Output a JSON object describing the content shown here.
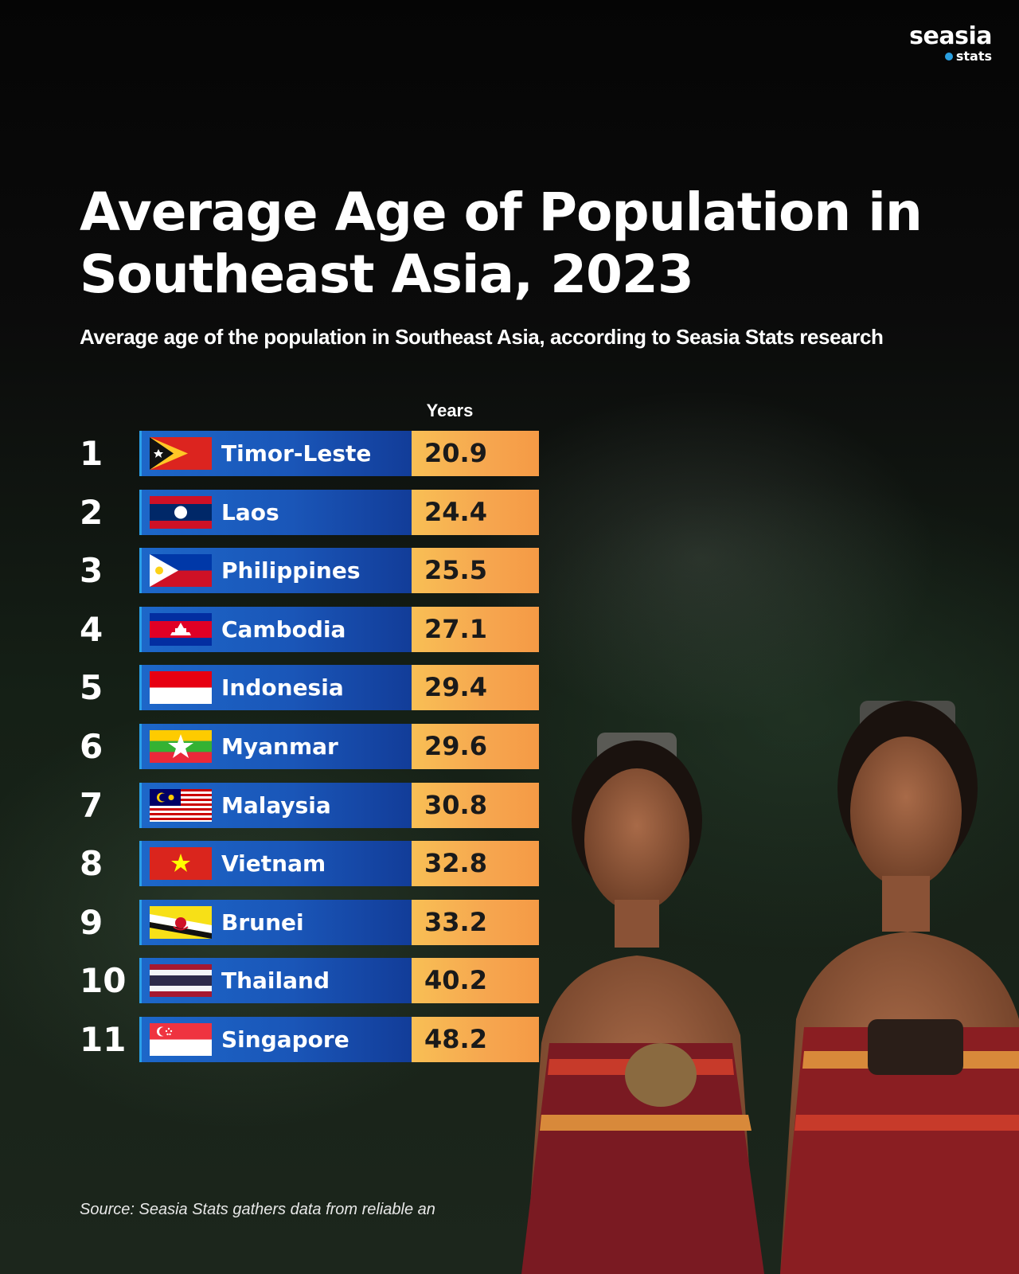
{
  "brand": {
    "name": "seasia",
    "sub": "stats",
    "accent": "#2a9fe0"
  },
  "chart_data": {
    "type": "bar",
    "title": "Average Age of Population in Southeast Asia, 2023",
    "subtitle": "Average age of the population in Southeast Asia, according to Seasia Stats research",
    "value_header": "Years",
    "categories": [
      "Timor-Leste",
      "Laos",
      "Philippines",
      "Cambodia",
      "Indonesia",
      "Myanmar",
      "Malaysia",
      "Vietnam",
      "Brunei",
      "Thailand",
      "Singapore"
    ],
    "ranks": [
      "1",
      "2",
      "3",
      "4",
      "5",
      "6",
      "7",
      "8",
      "9",
      "10",
      "11"
    ],
    "values": [
      20.9,
      24.4,
      25.5,
      27.1,
      29.4,
      29.6,
      30.8,
      32.8,
      33.2,
      40.2,
      48.2
    ],
    "value_labels": [
      "20.9",
      "24.4",
      "25.5",
      "27.1",
      "29.4",
      "29.6",
      "30.8",
      "32.8",
      "33.2",
      "40.2",
      "48.2"
    ],
    "flags": [
      "timor-leste-flag-icon",
      "laos-flag-icon",
      "philippines-flag-icon",
      "cambodia-flag-icon",
      "indonesia-flag-icon",
      "myanmar-flag-icon",
      "malaysia-flag-icon",
      "vietnam-flag-icon",
      "brunei-flag-icon",
      "thailand-flag-icon",
      "singapore-flag-icon"
    ],
    "bar_color": "#1a56b8",
    "value_color": "#f6a64f"
  },
  "source": "Source: Seasia Stats gathers data from reliable an"
}
